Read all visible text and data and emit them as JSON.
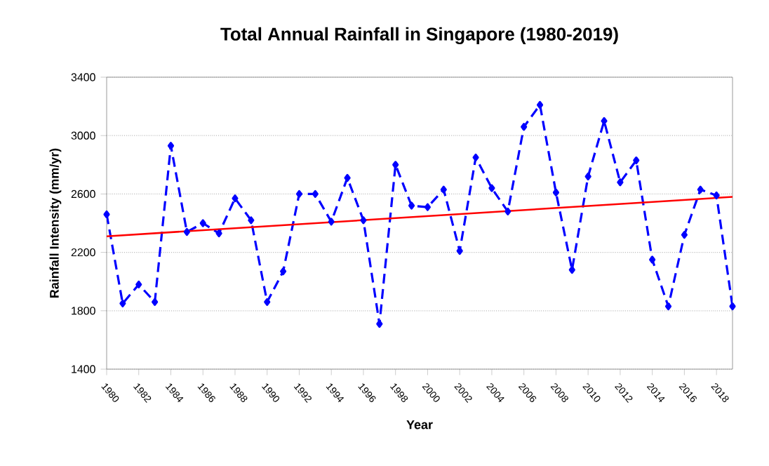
{
  "chart_data": {
    "type": "line",
    "title": "Total Annual Rainfall in Singapore (1980-2019)",
    "xlabel": "Year",
    "ylabel": "Rainfall Intensity (mm/yr)",
    "series": [
      {
        "color": "#0000ff",
        "line_style": "dashed",
        "marker": "diamond",
        "x": [
          1980,
          1981,
          1982,
          1983,
          1984,
          1985,
          1986,
          1987,
          1988,
          1989,
          1990,
          1991,
          1992,
          1993,
          1994,
          1995,
          1996,
          1997,
          1998,
          1999,
          2000,
          2001,
          2002,
          2003,
          2004,
          2005,
          2006,
          2007,
          2008,
          2009,
          2010,
          2011,
          2012,
          2013,
          2014,
          2015,
          2016,
          2017,
          2018,
          2019
        ],
        "values": [
          2460,
          1850,
          1980,
          1860,
          2930,
          2340,
          2400,
          2330,
          2570,
          2420,
          1860,
          2070,
          2600,
          2600,
          2410,
          2710,
          2420,
          1710,
          2800,
          2520,
          2510,
          2630,
          2210,
          2850,
          2640,
          2480,
          3060,
          3210,
          2610,
          2080,
          2720,
          3100,
          2680,
          2830,
          2150,
          1830,
          2320,
          2630,
          2590,
          1830
        ]
      },
      {
        "color": "#ff0000",
        "line_style": "solid",
        "marker": "none",
        "x": [
          1980,
          2019
        ],
        "values": [
          2310,
          2580
        ]
      }
    ],
    "xlim": [
      1980,
      2019
    ],
    "ylim": [
      1400,
      3400
    ],
    "xticks": [
      1980,
      1982,
      1984,
      1986,
      1988,
      1990,
      1992,
      1994,
      1996,
      1998,
      2000,
      2002,
      2004,
      2006,
      2008,
      2010,
      2012,
      2014,
      2016,
      2018
    ],
    "yticks": [
      1400,
      1800,
      2200,
      2600,
      3000,
      3400
    ],
    "grid": "y"
  }
}
